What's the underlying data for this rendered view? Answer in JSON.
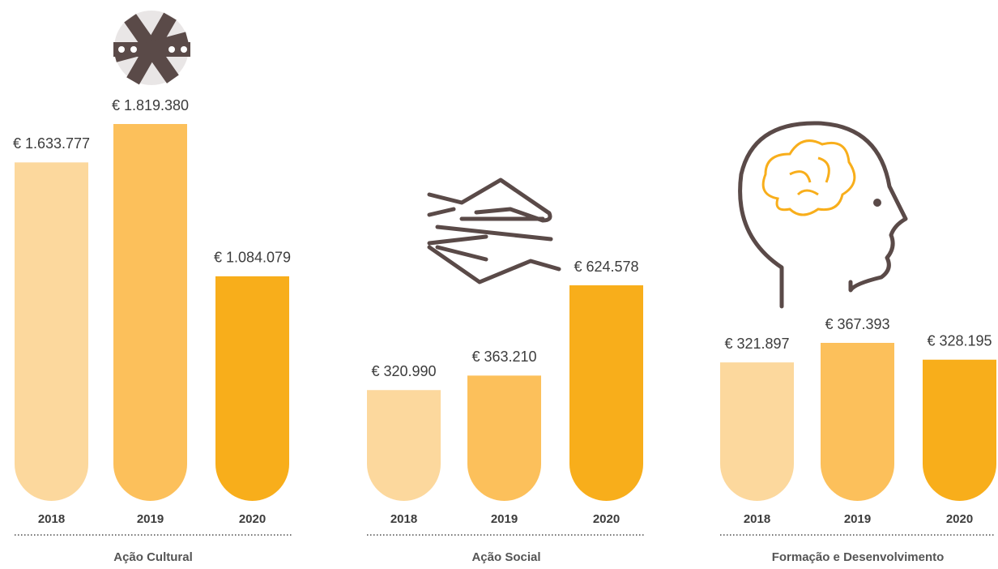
{
  "chart_data": [
    {
      "type": "bar",
      "title": "Ação Cultural",
      "categories": [
        "2018",
        "2019",
        "2020"
      ],
      "values": [
        1633777,
        1819380,
        1084079
      ],
      "value_labels": [
        "€ 1.633.777",
        "€ 1.819.380",
        "€ 1.084.079"
      ],
      "colors": [
        "#fcd89d",
        "#fcc05b",
        "#f8ae1b"
      ]
    },
    {
      "type": "bar",
      "title": "Ação Social",
      "categories": [
        "2018",
        "2019",
        "2020"
      ],
      "values": [
        320990,
        363210,
        624578
      ],
      "value_labels": [
        "€ 320.990",
        "€ 363.210",
        "€ 624.578"
      ],
      "colors": [
        "#fcd89d",
        "#fcc05b",
        "#f8ae1b"
      ]
    },
    {
      "type": "bar",
      "title": "Formação e Desenvolvimento",
      "categories": [
        "2018",
        "2019",
        "2020"
      ],
      "values": [
        321897,
        367393,
        328195
      ],
      "value_labels": [
        "€ 321.897",
        "€ 367.393",
        "€ 328.195"
      ],
      "colors": [
        "#fcd89d",
        "#fcc05b",
        "#f8ae1b"
      ]
    }
  ]
}
